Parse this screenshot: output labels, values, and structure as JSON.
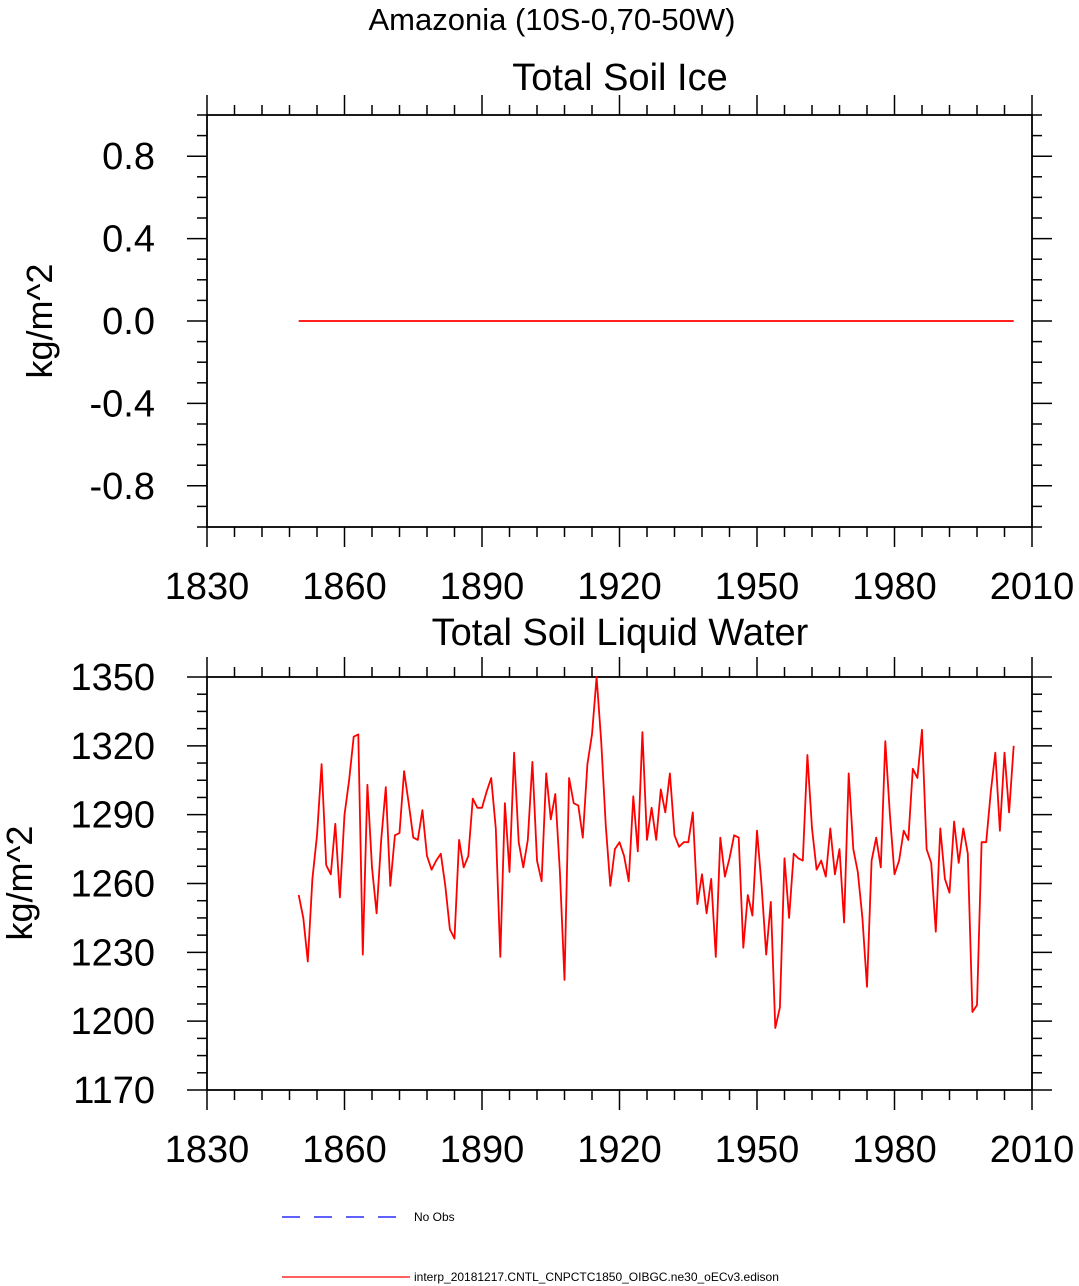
{
  "page_title": "Amazonia (10S-0,70-50W)",
  "colors": {
    "model": "#ff0000",
    "obs": "#0000ff",
    "axis": "#000000"
  },
  "legend": {
    "obs_label": "No Obs",
    "model_label": "interp_20181217.CNTL_CNPCTC1850_OIBGC.ne30_oECv3.edison"
  },
  "chart_data": [
    {
      "type": "line",
      "title": "Total Soil Ice",
      "ylabel": "kg/m^2",
      "xlim": [
        1830,
        2010
      ],
      "ylim": [
        -1.0,
        1.0
      ],
      "xticks": [
        1830,
        1860,
        1890,
        1920,
        1950,
        1980,
        2010
      ],
      "yticks": [
        -0.8,
        -0.4,
        0.0,
        0.4,
        0.8
      ],
      "ytick_labels": [
        "-0.8",
        "-0.4",
        "0.0",
        "0.4",
        "0.8"
      ],
      "series": [
        {
          "x_start": 1850,
          "x_end": 2006,
          "values": [
            0,
            0,
            0,
            0,
            0,
            0,
            0,
            0,
            0,
            0,
            0,
            0,
            0,
            0,
            0,
            0,
            0,
            0,
            0,
            0,
            0,
            0,
            0,
            0,
            0,
            0,
            0,
            0,
            0,
            0,
            0,
            0,
            0,
            0,
            0,
            0,
            0,
            0,
            0,
            0,
            0,
            0,
            0,
            0,
            0,
            0,
            0,
            0,
            0,
            0,
            0,
            0,
            0,
            0,
            0,
            0,
            0,
            0,
            0,
            0,
            0,
            0,
            0,
            0,
            0,
            0,
            0,
            0,
            0,
            0,
            0,
            0,
            0,
            0,
            0,
            0,
            0,
            0,
            0,
            0,
            0,
            0,
            0,
            0,
            0,
            0,
            0,
            0,
            0,
            0,
            0,
            0,
            0,
            0,
            0,
            0,
            0,
            0,
            0,
            0,
            0,
            0,
            0,
            0,
            0,
            0,
            0,
            0,
            0,
            0,
            0,
            0,
            0,
            0,
            0,
            0,
            0,
            0,
            0,
            0,
            0,
            0,
            0,
            0,
            0,
            0,
            0,
            0,
            0,
            0,
            0,
            0,
            0,
            0,
            0,
            0,
            0,
            0,
            0,
            0,
            0,
            0,
            0,
            0,
            0,
            0,
            0,
            0,
            0,
            0,
            0,
            0,
            0,
            0,
            0,
            0,
            0
          ]
        }
      ]
    },
    {
      "type": "line",
      "title": "Total Soil Liquid Water",
      "ylabel": "kg/m^2",
      "xlim": [
        1830,
        2010
      ],
      "ylim": [
        1170,
        1350
      ],
      "xticks": [
        1830,
        1860,
        1890,
        1920,
        1950,
        1980,
        2010
      ],
      "yticks": [
        1170,
        1200,
        1230,
        1260,
        1290,
        1320,
        1350
      ],
      "ytick_labels": [
        "1170",
        "1200",
        "1230",
        "1260",
        "1290",
        "1320",
        "1350"
      ],
      "series": [
        {
          "x_start": 1850,
          "x_end": 2006,
          "values": [
            1255,
            1245,
            1226,
            1262,
            1281,
            1312,
            1268,
            1264,
            1286,
            1254,
            1290,
            1305,
            1324,
            1325,
            1229,
            1303,
            1267,
            1247,
            1279,
            1302,
            1259,
            1281,
            1282,
            1309,
            1295,
            1280,
            1279,
            1292,
            1272,
            1266,
            1270,
            1273,
            1259,
            1240,
            1236,
            1279,
            1267,
            1272,
            1297,
            1293,
            1293,
            1300,
            1306,
            1284,
            1228,
            1295,
            1265,
            1317,
            1278,
            1267,
            1279,
            1313,
            1270,
            1261,
            1308,
            1288,
            1299,
            1265,
            1218,
            1306,
            1295,
            1294,
            1280,
            1312,
            1325,
            1350,
            1322,
            1285,
            1259,
            1275,
            1278,
            1272,
            1261,
            1298,
            1274,
            1326,
            1279,
            1293,
            1279,
            1301,
            1291,
            1308,
            1281,
            1276,
            1278,
            1278,
            1291,
            1251,
            1264,
            1247,
            1262,
            1228,
            1280,
            1263,
            1271,
            1281,
            1280,
            1232,
            1255,
            1246,
            1283,
            1259,
            1229,
            1252,
            1197,
            1206,
            1271,
            1245,
            1273,
            1271,
            1270,
            1316,
            1284,
            1266,
            1270,
            1263,
            1284,
            1264,
            1275,
            1243,
            1308,
            1275,
            1265,
            1245,
            1215,
            1270,
            1280,
            1267,
            1322,
            1290,
            1264,
            1270,
            1283,
            1279,
            1310,
            1306,
            1327,
            1275,
            1269,
            1239,
            1284,
            1262,
            1256,
            1287,
            1269,
            1284,
            1273,
            1204,
            1207,
            1278,
            1278,
            1300,
            1317,
            1283,
            1317,
            1291,
            1320
          ]
        }
      ]
    }
  ]
}
